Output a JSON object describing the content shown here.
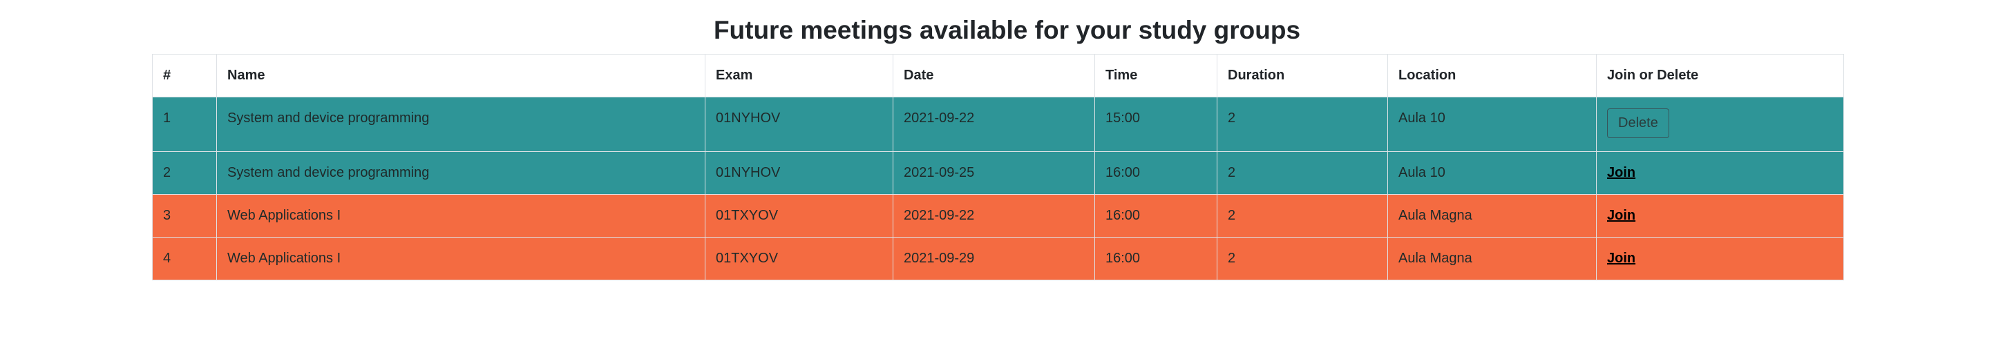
{
  "page": {
    "title": "Future meetings available for your study groups"
  },
  "table": {
    "headers": [
      "#",
      "Name",
      "Exam",
      "Date",
      "Time",
      "Duration",
      "Location",
      "Join or Delete"
    ],
    "rows": [
      {
        "num": "1",
        "name": "System and device programming",
        "exam": "01NYHOV",
        "date": "2021-09-22",
        "time": "15:00",
        "duration": "2",
        "location": "Aula 10",
        "action": "Delete",
        "action_type": "button"
      },
      {
        "num": "2",
        "name": "System and device programming",
        "exam": "01NYHOV",
        "date": "2021-09-25",
        "time": "16:00",
        "duration": "2",
        "location": "Aula 10",
        "action": "Join",
        "action_type": "link"
      },
      {
        "num": "3",
        "name": "Web Applications I",
        "exam": "01TXYOV",
        "date": "2021-09-22",
        "time": "16:00",
        "duration": "2",
        "location": "Aula Magna",
        "action": "Join",
        "action_type": "link"
      },
      {
        "num": "4",
        "name": "Web Applications I",
        "exam": "01TXYOV",
        "date": "2021-09-29",
        "time": "16:00",
        "duration": "2",
        "location": "Aula Magna",
        "action": "Join",
        "action_type": "link"
      }
    ]
  },
  "colors": {
    "row_teal": "#2e9597",
    "row_orange": "#f46b41",
    "header_bg": "#ffffff"
  }
}
